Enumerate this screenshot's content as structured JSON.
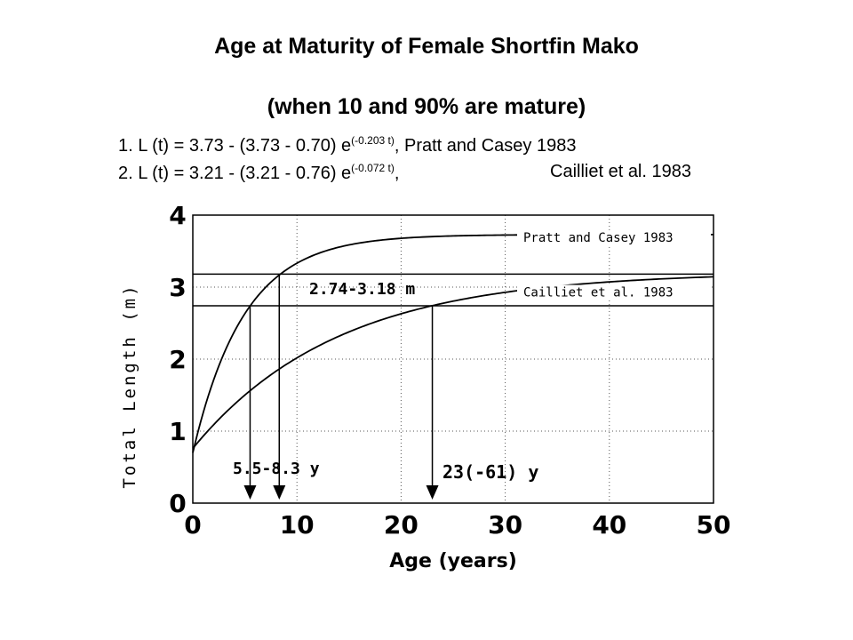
{
  "title": "Age at Maturity of Female Shortfin Mako",
  "subtitle": "(when 10 and 90% are mature)",
  "equations": [
    {
      "prefix": "1. L (t) = 3.73 - (3.73 - 0.70) e",
      "exponent": "(-0.203 t)",
      "suffix": ",",
      "reference": "Pratt and Casey 1983"
    },
    {
      "prefix": "2. L (t) = 3.21 - (3.21 - 0.76) e",
      "exponent": "(-0.072 t)",
      "suffix": ",",
      "reference": "Cailliet et al. 1983"
    }
  ],
  "chart_data": {
    "type": "line",
    "xlabel": "Age (years)",
    "ylabel": "Total Length (m)",
    "xlim": [
      0,
      50
    ],
    "ylim": [
      0,
      4
    ],
    "xticks": [
      "0",
      "10",
      "20",
      "30",
      "40",
      "50"
    ],
    "yticks": [
      "0",
      "1",
      "2",
      "3",
      "4"
    ],
    "grid": true,
    "series": [
      {
        "name": "Pratt and Casey 1983",
        "Linf": 3.73,
        "L0": 0.7,
        "k": 0.203,
        "x_range": [
          0,
          50
        ]
      },
      {
        "name": "Cailliet et al. 1983",
        "Linf": 3.21,
        "L0": 0.76,
        "k": 0.072,
        "x_range": [
          0,
          50
        ]
      }
    ],
    "reference_lines_y": [
      3.18,
      2.74
    ],
    "maturity_arrows_x": [
      5.5,
      8.3,
      23.0
    ],
    "annotations": [
      {
        "text": "2.74-3.18 m",
        "x": 12,
        "y": 2.98
      },
      {
        "text": "5.5-8.3 y",
        "x": 3,
        "y": 0.6
      },
      {
        "text": "23(-61) y",
        "x": 23,
        "y": 0.55
      }
    ]
  }
}
